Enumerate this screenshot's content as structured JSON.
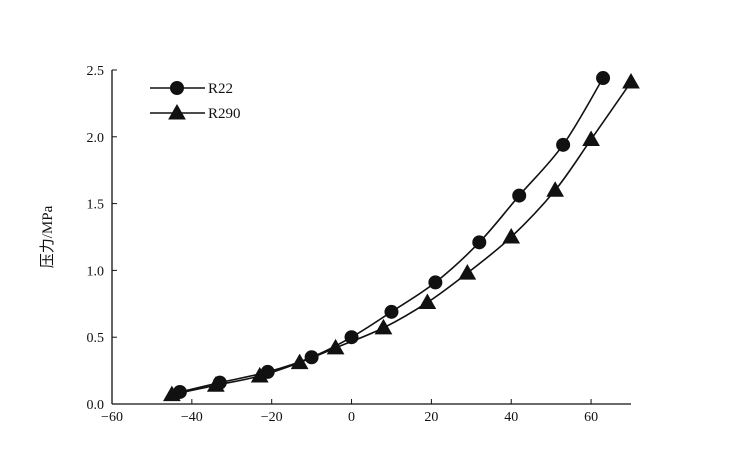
{
  "chart_data": {
    "type": "line",
    "ylabel": "压力/MPa",
    "xlim": [
      -60,
      70
    ],
    "ylim": [
      0.0,
      2.5
    ],
    "x_ticks": [
      -60,
      -40,
      -20,
      0,
      20,
      40,
      60
    ],
    "x_tick_labels": [
      "−60",
      "−40",
      "−20",
      "0",
      "20",
      "40",
      "60"
    ],
    "y_ticks": [
      0.0,
      0.5,
      1.0,
      1.5,
      2.0,
      2.5
    ],
    "y_tick_labels": [
      "0.0",
      "0.5",
      "1.0",
      "1.5",
      "2.0",
      "2.5"
    ],
    "grid": false,
    "legend_position": "top-left",
    "series": [
      {
        "name": "R22",
        "marker": "circle",
        "x": [
          -43,
          -33,
          -21,
          -10,
          0,
          10,
          21,
          32,
          42,
          53,
          63
        ],
        "y": [
          0.09,
          0.16,
          0.24,
          0.35,
          0.5,
          0.69,
          0.91,
          1.21,
          1.56,
          1.94,
          2.44
        ]
      },
      {
        "name": "R290",
        "marker": "triangle",
        "x": [
          -45,
          -34,
          -23,
          -13,
          -4,
          8,
          19,
          29,
          40,
          51,
          60,
          70
        ],
        "y": [
          0.07,
          0.14,
          0.21,
          0.31,
          0.42,
          0.57,
          0.76,
          0.98,
          1.25,
          1.6,
          1.98,
          2.41
        ]
      }
    ]
  }
}
